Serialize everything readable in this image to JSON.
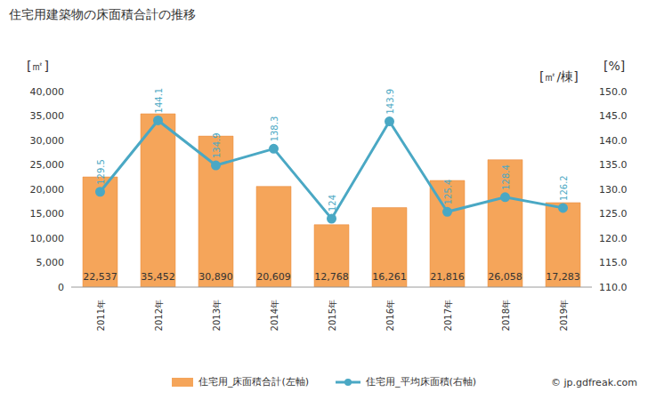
{
  "chart_data": {
    "type": "bar",
    "title": "住宅用建築物の床面積合計の推移",
    "ylabel": "[㎡]",
    "y2label": [
      "[%]",
      "[㎡/棟]"
    ],
    "source": "© jp.gdfreak.com",
    "categories": [
      "2011年",
      "2012年",
      "2013年",
      "2014年",
      "2015年",
      "2016年",
      "2017年",
      "2018年",
      "2019年"
    ],
    "series": [
      {
        "name": "住宅用_床面積合計(左軸)",
        "type": "bar",
        "color": "#f5a55a",
        "values": [
          22537,
          35452,
          30890,
          20609,
          12768,
          16261,
          21816,
          26058,
          17283
        ],
        "value_labels": [
          "22,537",
          "35,452",
          "30,890",
          "20,609",
          "12,768",
          "16,261",
          "21,816",
          "26,058",
          "17,283"
        ]
      },
      {
        "name": "住宅用_平均床面積(右軸)",
        "type": "line",
        "axis": "y2",
        "color": "#4aa8c4",
        "marker": "circle",
        "data_labels": true,
        "values": [
          129.5,
          144.1,
          134.9,
          138.3,
          124,
          143.9,
          125.4,
          128.4,
          126.2
        ]
      }
    ],
    "ylim": [
      0,
      40000
    ],
    "yticks": [
      {
        "value": 0,
        "label": "0"
      },
      {
        "value": 5000,
        "label": "5,000"
      },
      {
        "value": 10000,
        "label": "10,000"
      },
      {
        "value": 15000,
        "label": "15,000"
      },
      {
        "value": 20000,
        "label": "20,000"
      },
      {
        "value": 25000,
        "label": "25,000"
      },
      {
        "value": 30000,
        "label": "30,000"
      },
      {
        "value": 35000,
        "label": "35,000"
      },
      {
        "value": 40000,
        "label": "40,000"
      }
    ],
    "y2lim": [
      110,
      150
    ],
    "y2ticks": [
      {
        "value": 110,
        "label": "110.0"
      },
      {
        "value": 115,
        "label": "115.0"
      },
      {
        "value": 120,
        "label": "120.0"
      },
      {
        "value": 125,
        "label": "125.0"
      },
      {
        "value": 130,
        "label": "130.0"
      },
      {
        "value": 135,
        "label": "135.0"
      },
      {
        "value": 140,
        "label": "140.0"
      },
      {
        "value": 145,
        "label": "145.0"
      },
      {
        "value": 150,
        "label": "150.0"
      }
    ],
    "grid": false,
    "legend": "bottom"
  }
}
